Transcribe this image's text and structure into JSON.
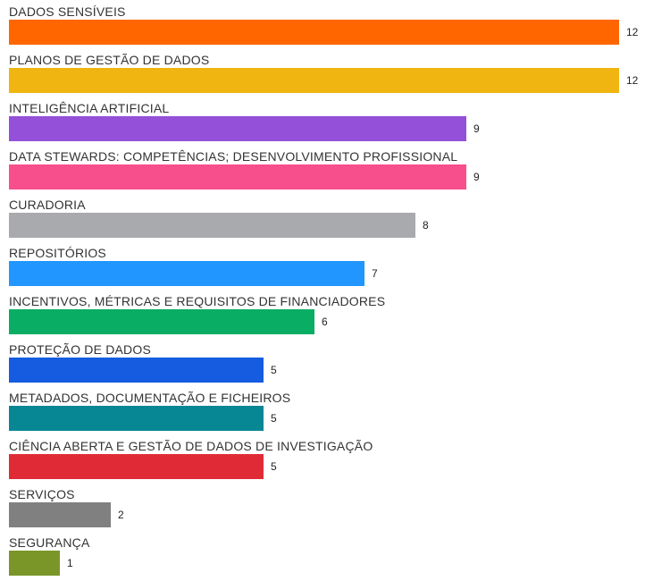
{
  "chart_data": {
    "type": "bar",
    "orientation": "horizontal",
    "title": "",
    "xlabel": "",
    "ylabel": "",
    "xlim": [
      0,
      12
    ],
    "grid": false,
    "legend": "none",
    "categories": [
      "DADOS SENSÍVEIS",
      "PLANOS DE GESTÃO DE DADOS",
      "INTELIGÊNCIA ARTIFICIAL",
      "DATA STEWARDS: COMPETÊNCIAS; DESENVOLVIMENTO PROFISSIONAL",
      "CURADORIA",
      "REPOSITÓRIOS",
      "INCENTIVOS, MÉTRICAS E REQUISITOS DE FINANCIADORES",
      "PROTEÇÃO DE DADOS",
      "METADADOS, DOCUMENTAÇÃO E FICHEIROS",
      "CIÊNCIA ABERTA E GESTÃO DE DADOS DE INVESTIGAÇÃO",
      "SERVIÇOS",
      "SEGURANÇA"
    ],
    "values": [
      12,
      12,
      9,
      9,
      8,
      7,
      6,
      5,
      5,
      5,
      2,
      1
    ],
    "colors": [
      "#ff6600",
      "#f0b510",
      "#9450d8",
      "#f74f8b",
      "#a8aaad",
      "#2196ff",
      "#0aad64",
      "#155ce0",
      "#078794",
      "#e02b37",
      "#808080",
      "#7a9628"
    ]
  }
}
